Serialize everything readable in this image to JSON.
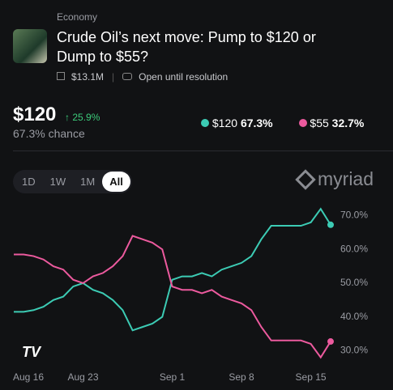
{
  "header": {
    "category": "Economy",
    "title": "Crude Oil’s next move: Pump to $120 or Dump to $55?",
    "volume": "$13.1M",
    "status": "Open until resolution"
  },
  "price": {
    "outcome": "$120",
    "change": "25.9%",
    "chance": "67.3% chance"
  },
  "outcomes": [
    {
      "chance": "67.3%"
    },
    {
      "chance": "32.7%"
    }
  ],
  "tabs": [
    "1D",
    "1W",
    "1M",
    "All"
  ],
  "brand": "myriad",
  "chart_data": {
    "type": "line",
    "x": [
      "Aug 16",
      "Aug 17",
      "Aug 18",
      "Aug 19",
      "Aug 20",
      "Aug 21",
      "Aug 22",
      "Aug 23",
      "Aug 24",
      "Aug 25",
      "Aug 26",
      "Aug 27",
      "Aug 28",
      "Aug 29",
      "Aug 30",
      "Aug 31",
      "Sep 1",
      "Sep 2",
      "Sep 3",
      "Sep 4",
      "Sep 5",
      "Sep 6",
      "Sep 7",
      "Sep 8",
      "Sep 9",
      "Sep 10",
      "Sep 11",
      "Sep 12",
      "Sep 13",
      "Sep 14",
      "Sep 15",
      "Sep 16",
      "Sep 17"
    ],
    "xticks": [
      "Aug 16",
      "Aug 23",
      "Sep 1",
      "Sep 8",
      "Sep 15"
    ],
    "series": [
      {
        "name": "$120",
        "color": "#3ccbb4",
        "values": [
          41.5,
          41.5,
          42,
          43,
          45,
          46,
          49,
          50,
          48,
          47,
          45,
          42,
          36,
          37,
          38,
          40,
          51,
          52,
          52,
          53,
          52,
          54,
          55,
          56,
          58,
          63,
          67,
          67,
          67,
          67,
          68,
          72,
          67.3
        ]
      },
      {
        "name": "$55",
        "color": "#ec5a9e",
        "values": [
          58.5,
          58.5,
          58,
          57,
          55,
          54,
          51,
          50,
          52,
          53,
          55,
          58,
          64,
          63,
          62,
          60,
          49,
          48,
          48,
          47,
          48,
          46,
          45,
          44,
          42,
          37,
          33,
          33,
          33,
          33,
          32,
          28,
          32.7
        ]
      }
    ],
    "ylim": [
      26,
      73
    ],
    "yticks": [
      {
        "value": 30,
        "label": "30.0%"
      },
      {
        "value": 40,
        "label": "40.0%"
      },
      {
        "value": 50,
        "label": "50.0%"
      },
      {
        "value": 60,
        "label": "60.0%"
      },
      {
        "value": 70,
        "label": "70.0%"
      }
    ],
    "grid": false
  }
}
